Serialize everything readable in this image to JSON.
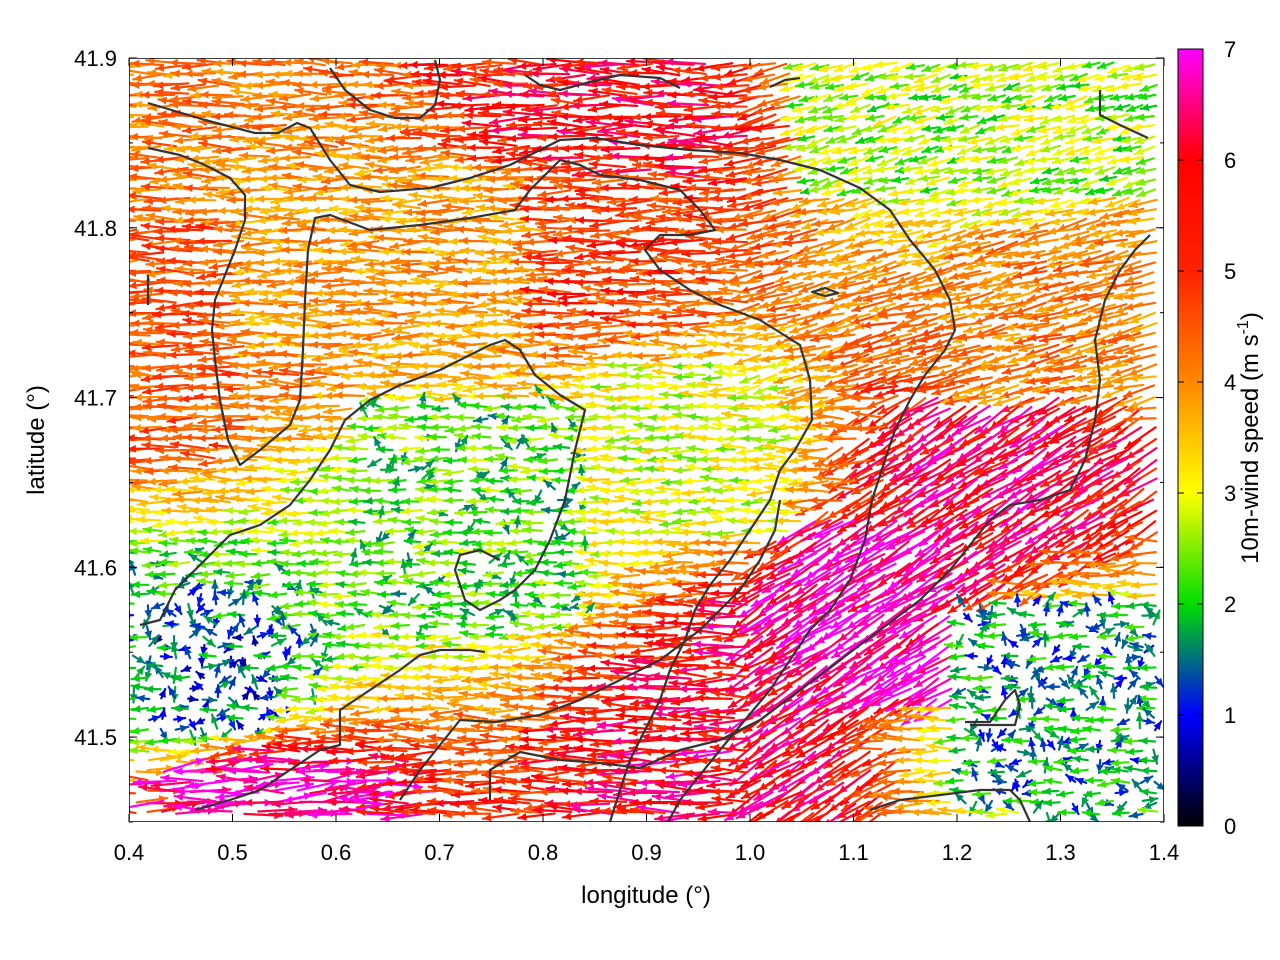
{
  "chart_data": {
    "type": "vector-field",
    "xlabel": "longitude (°)",
    "ylabel": "latitude (°)",
    "xlim": [
      0.4,
      1.4
    ],
    "ylim": [
      41.45,
      41.9
    ],
    "x_ticks": [
      "0.4",
      "0.5",
      "0.6",
      "0.7",
      "0.8",
      "0.9",
      "1.0",
      "1.1",
      "1.2",
      "1.3",
      "1.4"
    ],
    "x_tick_values": [
      0.4,
      0.5,
      0.6,
      0.7,
      0.8,
      0.9,
      1.0,
      1.1,
      1.2,
      1.3,
      1.4
    ],
    "y_ticks": [
      "41.5",
      "41.6",
      "41.7",
      "41.8",
      "41.9"
    ],
    "y_tick_values": [
      41.5,
      41.6,
      41.7,
      41.8,
      41.9
    ],
    "colorbar": {
      "label_main": "10m-wind speed (m s",
      "label_sup": "-1",
      "label_close": ")",
      "min": 0,
      "max": 7,
      "ticks": [
        "0",
        "1",
        "2",
        "3",
        "4",
        "5",
        "6",
        "7"
      ],
      "tick_values": [
        0,
        1,
        2,
        3,
        4,
        5,
        6,
        7
      ],
      "palette": [
        "#000000",
        "#0000ff",
        "#00dd00",
        "#ffff00",
        "#ff8800",
        "#ff0000",
        "#ff00ff"
      ]
    },
    "wind_field": {
      "dominant_direction": "toward west",
      "speed_regions": [
        {
          "lon": [
            0.4,
            0.52
          ],
          "lat": [
            41.66,
            41.8
          ],
          "speed_m_s": 5.0
        },
        {
          "lon": [
            0.52,
            0.8
          ],
          "lat": [
            41.72,
            41.84
          ],
          "speed_m_s": 4.2
        },
        {
          "lon": [
            0.8,
            0.95
          ],
          "lat": [
            41.74,
            41.83
          ],
          "speed_m_s": 5.3
        },
        {
          "lon": [
            0.85,
            0.95
          ],
          "lat": [
            41.84,
            41.89
          ],
          "speed_m_s": 6.0
        },
        {
          "lon": [
            0.62,
            0.85
          ],
          "lat": [
            41.56,
            41.7
          ],
          "speed_m_s": 2.2
        },
        {
          "lon": [
            0.85,
            1.05
          ],
          "lat": [
            41.62,
            41.72
          ],
          "speed_m_s": 3.0
        },
        {
          "lon": [
            1.05,
            1.2
          ],
          "lat": [
            41.52,
            41.63
          ],
          "speed_m_s": 6.8
        },
        {
          "lon": [
            1.18,
            1.32
          ],
          "lat": [
            41.62,
            41.7
          ],
          "speed_m_s": 6.3
        },
        {
          "lon": [
            0.9,
            1.1
          ],
          "lat": [
            41.46,
            41.54
          ],
          "speed_m_s": 6.2
        },
        {
          "lon": [
            1.2,
            1.4
          ],
          "lat": [
            41.46,
            41.58
          ],
          "speed_m_s": 1.6
        },
        {
          "lon": [
            1.2,
            1.4
          ],
          "lat": [
            41.7,
            41.8
          ],
          "speed_m_s": 4.6
        },
        {
          "lon": [
            1.05,
            1.4
          ],
          "lat": [
            41.82,
            41.9
          ],
          "speed_m_s": 2.6
        },
        {
          "lon": [
            0.42,
            0.65
          ],
          "lat": [
            41.45,
            41.48
          ],
          "speed_m_s": 6.8
        },
        {
          "lon": [
            0.42,
            0.55
          ],
          "lat": [
            41.5,
            41.56
          ],
          "speed_m_s": 1.3
        }
      ]
    }
  }
}
